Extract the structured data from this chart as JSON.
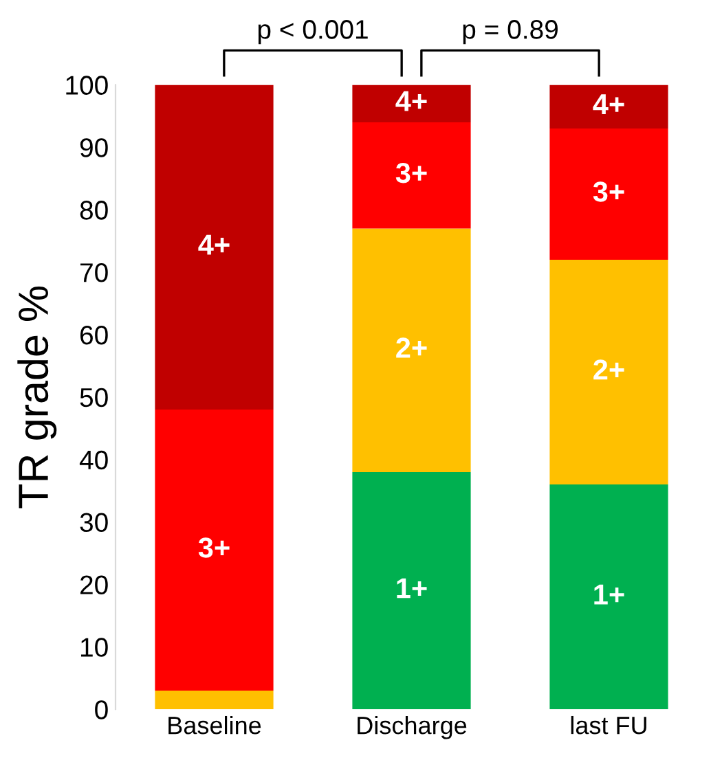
{
  "chart_data": {
    "type": "bar",
    "stacked": true,
    "ylabel": "TR grade %",
    "categories": [
      "Baseline",
      "Discharge",
      "last FU"
    ],
    "series": [
      {
        "name": "1+",
        "color": "#00b050",
        "values": [
          0,
          38,
          36
        ]
      },
      {
        "name": "2+",
        "color": "#ffc000",
        "values": [
          3,
          39,
          36
        ]
      },
      {
        "name": "3+",
        "color": "#ff0000",
        "values": [
          45,
          17,
          21
        ]
      },
      {
        "name": "4+",
        "color": "#c00000",
        "values": [
          52,
          6,
          7
        ]
      }
    ],
    "ylim": [
      0,
      100
    ],
    "yticks": [
      0,
      10,
      20,
      30,
      40,
      50,
      60,
      70,
      80,
      90,
      100
    ],
    "grid": false,
    "legend": false,
    "annotations": [
      "p < 0.001",
      "p = 0.89"
    ]
  }
}
